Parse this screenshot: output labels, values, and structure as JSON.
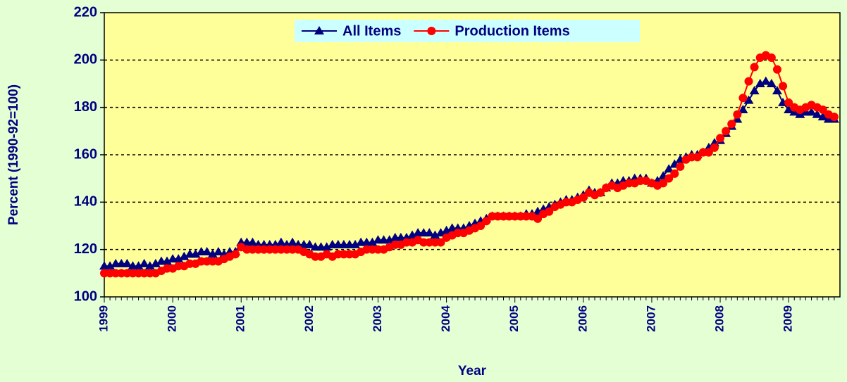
{
  "chart_data": {
    "type": "line",
    "ylabel": "Percent (1990-92=100)",
    "xlabel": "Year",
    "categories": [
      "1999",
      null,
      null,
      null,
      null,
      null,
      null,
      null,
      null,
      null,
      null,
      null,
      "2000",
      null,
      null,
      null,
      null,
      null,
      null,
      null,
      null,
      null,
      null,
      null,
      "2001",
      null,
      null,
      null,
      null,
      null,
      null,
      null,
      null,
      null,
      null,
      null,
      "2002",
      null,
      null,
      null,
      null,
      null,
      null,
      null,
      null,
      null,
      null,
      null,
      "2003",
      null,
      null,
      null,
      null,
      null,
      null,
      null,
      null,
      null,
      null,
      null,
      "2004",
      null,
      null,
      null,
      null,
      null,
      null,
      null,
      null,
      null,
      null,
      null,
      "2005",
      null,
      null,
      null,
      null,
      null,
      null,
      null,
      null,
      null,
      null,
      null,
      "2006",
      null,
      null,
      null,
      null,
      null,
      null,
      null,
      null,
      null,
      null,
      null,
      "2007",
      null,
      null,
      null,
      null,
      null,
      null,
      null,
      null,
      null,
      null,
      null,
      "2008",
      null,
      null,
      null,
      null,
      null,
      null,
      null,
      null,
      null,
      null,
      null,
      "2009",
      null,
      null,
      null,
      null,
      null,
      null,
      null,
      null
    ],
    "series": [
      {
        "name": "All Items",
        "color": "#000080",
        "marker": "triangle",
        "values": [
          113,
          113,
          114,
          114,
          114,
          113,
          113,
          114,
          113,
          114,
          115,
          115,
          116,
          116,
          117,
          118,
          118,
          119,
          119,
          118,
          119,
          118,
          119,
          119,
          123,
          123,
          123,
          122,
          122,
          122,
          122,
          123,
          122,
          123,
          122,
          122,
          122,
          121,
          121,
          121,
          122,
          122,
          122,
          122,
          122,
          123,
          123,
          123,
          124,
          124,
          124,
          125,
          125,
          125,
          126,
          127,
          127,
          127,
          126,
          127,
          128,
          129,
          129,
          129,
          130,
          131,
          132,
          133,
          134,
          134,
          134,
          134,
          134,
          134,
          135,
          135,
          136,
          137,
          138,
          139,
          140,
          141,
          141,
          142,
          143,
          145,
          144,
          144,
          146,
          148,
          148,
          149,
          149,
          150,
          150,
          150,
          148,
          149,
          151,
          154,
          156,
          158,
          159,
          160,
          160,
          161,
          163,
          165,
          166,
          169,
          172,
          175,
          179,
          183,
          187,
          190,
          191,
          190,
          187,
          182,
          179,
          178,
          177,
          178,
          178,
          177,
          176,
          175,
          175
        ]
      },
      {
        "name": "Production Items",
        "color": "#ff0000",
        "marker": "circle",
        "values": [
          110,
          110,
          110,
          110,
          110,
          110,
          110,
          110,
          110,
          110,
          111,
          112,
          112,
          113,
          113,
          114,
          114,
          115,
          115,
          115,
          115,
          116,
          117,
          118,
          121,
          120,
          120,
          120,
          120,
          120,
          120,
          120,
          120,
          120,
          120,
          119,
          118,
          117,
          117,
          118,
          117,
          118,
          118,
          118,
          118,
          119,
          120,
          120,
          120,
          120,
          121,
          122,
          122,
          123,
          123,
          124,
          123,
          123,
          123,
          123,
          125,
          126,
          127,
          127,
          128,
          129,
          130,
          132,
          134,
          134,
          134,
          134,
          134,
          134,
          134,
          134,
          133,
          135,
          136,
          138,
          139,
          140,
          140,
          141,
          142,
          144,
          143,
          144,
          146,
          147,
          146,
          147,
          148,
          148,
          149,
          149,
          148,
          147,
          148,
          150,
          152,
          155,
          158,
          159,
          159,
          161,
          161,
          163,
          167,
          170,
          173,
          177,
          184,
          191,
          197,
          201,
          202,
          201,
          196,
          189,
          182,
          180,
          179,
          180,
          181,
          180,
          179,
          177,
          176
        ]
      }
    ],
    "ylim": [
      100,
      220
    ],
    "yticks": [
      100,
      120,
      140,
      160,
      180,
      200,
      220
    ],
    "grid": true,
    "legend": "top"
  }
}
